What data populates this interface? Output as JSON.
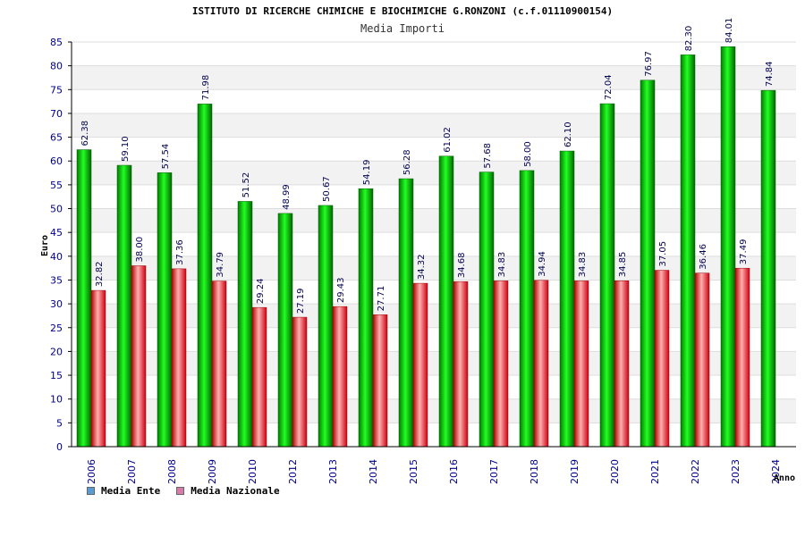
{
  "header": {
    "title": "ISTITUTO DI RICERCHE CHIMICHE E BIOCHIMICHE G.RONZONI (c.f.01110900154)",
    "subtitle": "Media Importi"
  },
  "legend": {
    "items": [
      {
        "label": "Media Ente",
        "color": "#5a9bd5"
      },
      {
        "label": "Media Nazionale",
        "color": "#d77bab"
      }
    ]
  },
  "chart_data": {
    "type": "bar",
    "title": "Media Importi",
    "xlabel": "Anno",
    "ylabel": "Euro",
    "ylim": [
      0,
      85
    ],
    "ytick_step": 5,
    "grid": true,
    "legend_position": "bottom-left",
    "categories": [
      "2006",
      "2007",
      "2008",
      "2009",
      "2010",
      "2012",
      "2013",
      "2014",
      "2015",
      "2016",
      "2017",
      "2018",
      "2019",
      "2020",
      "2021",
      "2022",
      "2023",
      "2024"
    ],
    "series": [
      {
        "name": "Media Ente",
        "color": "#00c000",
        "values": [
          62.38,
          59.1,
          57.54,
          71.98,
          51.52,
          48.99,
          50.67,
          54.19,
          56.28,
          61.02,
          57.68,
          58.0,
          62.1,
          72.04,
          76.97,
          82.3,
          84.01,
          74.84
        ],
        "labels": [
          "62.38",
          "59.10",
          "57.54",
          "71.98",
          "51.52",
          "48.99",
          "50.67",
          "54.19",
          "56.28",
          "61.02",
          "57.68",
          "58.00",
          "62.10",
          "72.04",
          "76.97",
          "82.30",
          "84.01",
          "74.84"
        ]
      },
      {
        "name": "Media Nazionale",
        "color": "#e02020",
        "values": [
          32.82,
          38.0,
          37.36,
          34.79,
          29.24,
          27.19,
          29.43,
          27.71,
          34.32,
          34.68,
          34.83,
          34.94,
          34.83,
          34.85,
          37.05,
          36.46,
          37.49,
          null
        ],
        "labels": [
          "32.82",
          "38.00",
          "37.36",
          "34.79",
          "29.24",
          "27.19",
          "29.43",
          "27.71",
          "34.32",
          "34.68",
          "34.83",
          "34.94",
          "34.83",
          "34.85",
          "37.05",
          "36.46",
          "37.49",
          null
        ]
      }
    ]
  }
}
